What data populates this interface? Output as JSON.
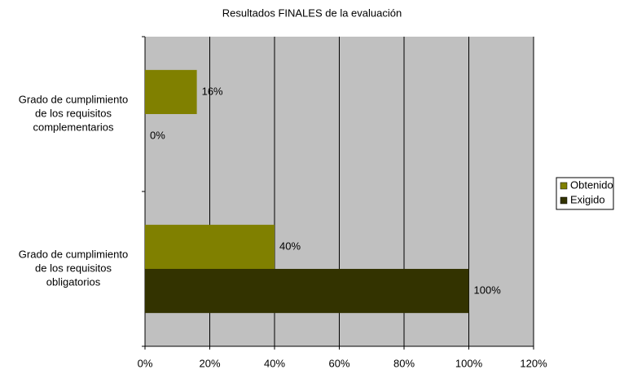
{
  "chart_data": {
    "type": "bar",
    "orientation": "horizontal",
    "title": "Resultados FINALES de la evaluación",
    "categories": [
      [
        "Grado de cumplimiento",
        "de los requisitos",
        "complementarios"
      ],
      [
        "Grado de cumplimiento",
        "de los requisitos",
        "obligatorios"
      ]
    ],
    "series": [
      {
        "name": "Obtenido",
        "color": "#808000",
        "values": [
          16,
          40
        ],
        "value_labels": [
          "16%",
          "40%"
        ]
      },
      {
        "name": "Exigido",
        "color": "#333300",
        "values": [
          0,
          100
        ],
        "value_labels": [
          "0%",
          "100%"
        ]
      }
    ],
    "xlim": [
      0,
      120
    ],
    "xticks": [
      {
        "value": 0,
        "label": "0%"
      },
      {
        "value": 20,
        "label": "20%"
      },
      {
        "value": 40,
        "label": "40%"
      },
      {
        "value": 60,
        "label": "60%"
      },
      {
        "value": 80,
        "label": "80%"
      },
      {
        "value": 100,
        "label": "100%"
      },
      {
        "value": 120,
        "label": "120%"
      }
    ],
    "grid": true,
    "legend": "right",
    "plot_background": "#c0c0c0"
  }
}
